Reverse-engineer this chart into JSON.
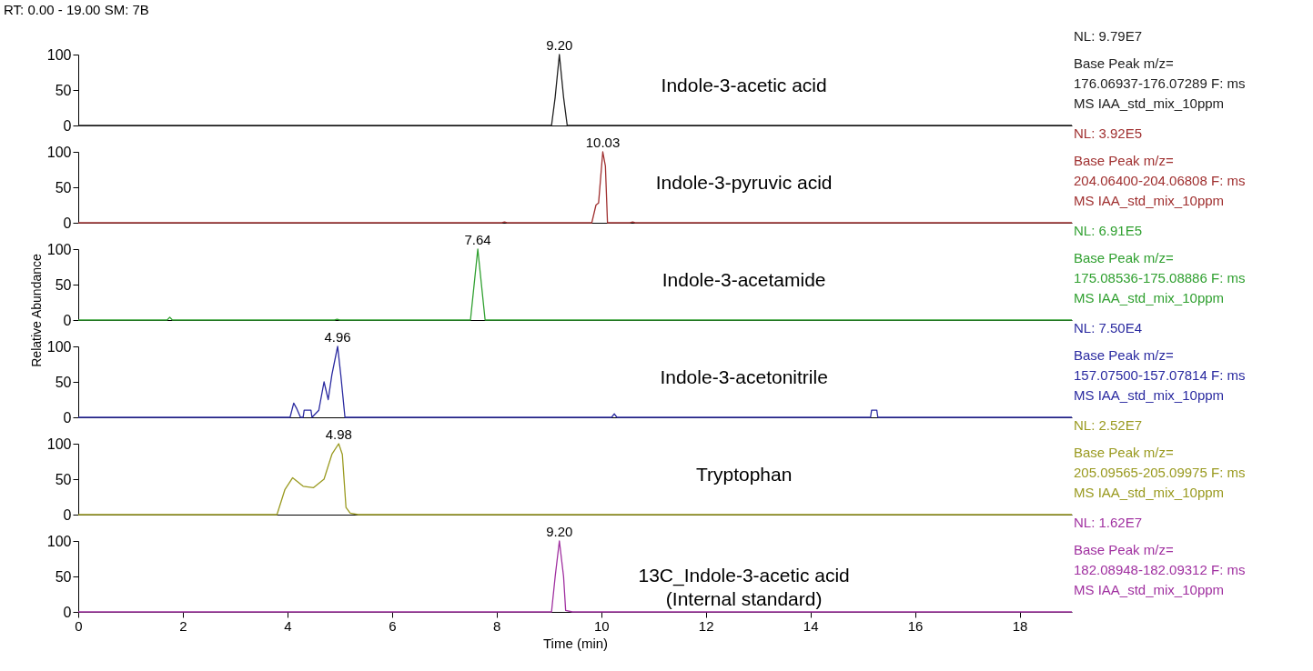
{
  "chart_data": [
    {
      "type": "line",
      "title": "RT: 0.00 - 19.00   SM: 7B",
      "xlim": [
        0,
        19
      ],
      "xticks": [
        0,
        2,
        4,
        6,
        8,
        10,
        12,
        14,
        16,
        18
      ],
      "ylim": [
        0,
        100
      ],
      "yticks": [
        0,
        50,
        100
      ],
      "tick_labels": "y",
      "series": [
        {
          "color": "#202020",
          "x": [
            0,
            9.05,
            9.12,
            9.2,
            9.28,
            9.35,
            19
          ],
          "values": [
            0,
            0,
            40,
            100,
            40,
            0,
            0
          ]
        }
      ],
      "annotations": [
        "Indole-3-acetic acid",
        "NL: 9.79E7",
        "Base Peak m/z=\n176.06937-176.07289 F: ms\nMS IAA_std_mix_10ppm",
        {
          "text": "9.20",
          "x": 9.2,
          "y": 100
        }
      ]
    },
    {
      "type": "line",
      "xlim": [
        0,
        19
      ],
      "xticks": [
        0,
        2,
        4,
        6,
        8,
        10,
        12,
        14,
        16,
        18
      ],
      "ylim": [
        0,
        100
      ],
      "yticks": [
        0,
        50,
        100
      ],
      "tick_labels": "y",
      "series": [
        {
          "color": "#a03030",
          "x": [
            0,
            8.1,
            8.15,
            8.2,
            9.82,
            9.9,
            9.95,
            10.03,
            10.08,
            10.12,
            10.55,
            10.6,
            10.65,
            19
          ],
          "values": [
            0,
            0,
            1,
            0,
            0,
            25,
            28,
            100,
            80,
            0,
            0,
            1,
            0,
            0
          ]
        }
      ],
      "annotations": [
        "Indole-3-pyruvic acid",
        "NL: 3.92E5",
        "Base Peak m/z=\n204.06400-204.06808 F: ms\nMS IAA_std_mix_10ppm",
        {
          "text": "10.03",
          "x": 10.03,
          "y": 100
        }
      ]
    },
    {
      "type": "line",
      "xlim": [
        0,
        19
      ],
      "xticks": [
        0,
        2,
        4,
        6,
        8,
        10,
        12,
        14,
        16,
        18
      ],
      "ylim": [
        0,
        100
      ],
      "yticks": [
        0,
        50,
        100
      ],
      "tick_labels": "y",
      "series": [
        {
          "color": "#30a030",
          "x": [
            0,
            1.7,
            1.75,
            1.8,
            4.9,
            4.95,
            5.0,
            7.5,
            7.64,
            7.78,
            19
          ],
          "values": [
            0,
            0,
            4,
            0,
            0,
            1,
            0,
            0,
            100,
            0,
            0
          ]
        }
      ],
      "annotations": [
        "Indole-3-acetamide",
        "NL: 6.91E5",
        "Base Peak m/z=\n175.08536-175.08886 F: ms\nMS IAA_std_mix_10ppm",
        {
          "text": "7.64",
          "x": 7.64,
          "y": 100
        }
      ]
    },
    {
      "type": "line",
      "ylabel": "Relative Abundance",
      "xlim": [
        0,
        19
      ],
      "xticks": [
        0,
        2,
        4,
        6,
        8,
        10,
        12,
        14,
        16,
        18
      ],
      "ylim": [
        0,
        100
      ],
      "yticks": [
        0,
        50,
        100
      ],
      "tick_labels": "y",
      "series": [
        {
          "color": "#2a2aa0",
          "x": [
            0,
            4.05,
            4.12,
            4.18,
            4.25,
            4.3,
            4.32,
            4.45,
            4.47,
            4.6,
            4.7,
            4.78,
            4.85,
            4.96,
            5.02,
            5.1,
            10.2,
            10.25,
            10.3,
            15.15,
            15.17,
            15.27,
            15.29,
            19
          ],
          "values": [
            0,
            0,
            20,
            12,
            0,
            0,
            10,
            10,
            0,
            10,
            50,
            25,
            60,
            100,
            60,
            0,
            0,
            5,
            0,
            0,
            10,
            10,
            0,
            0
          ]
        }
      ],
      "annotations": [
        "Indole-3-acetonitrile",
        "NL: 7.50E4",
        "Base Peak m/z=\n157.07500-157.07814 F: ms\nMS IAA_std_mix_10ppm",
        {
          "text": "4.96",
          "x": 4.96,
          "y": 100
        }
      ]
    },
    {
      "type": "line",
      "xlim": [
        0,
        19
      ],
      "xticks": [
        0,
        2,
        4,
        6,
        8,
        10,
        12,
        14,
        16,
        18
      ],
      "ylim": [
        0,
        100
      ],
      "yticks": [
        0,
        50,
        100
      ],
      "tick_labels": "y",
      "series": [
        {
          "color": "#9a9a20",
          "x": [
            0,
            3.8,
            3.95,
            4.1,
            4.3,
            4.5,
            4.7,
            4.85,
            4.98,
            5.05,
            5.12,
            5.2,
            5.35,
            19
          ],
          "values": [
            0,
            0,
            35,
            52,
            40,
            38,
            50,
            85,
            100,
            85,
            10,
            2,
            0,
            0
          ]
        }
      ],
      "annotations": [
        "Tryptophan",
        "NL: 2.52E7",
        "Base Peak m/z=\n205.09565-205.09975 F: ms\nMS IAA_std_mix_10ppm",
        {
          "text": "4.98",
          "x": 4.98,
          "y": 100
        }
      ]
    },
    {
      "type": "line",
      "xlabel": "Time (min)",
      "xlim": [
        0,
        19
      ],
      "xticks": [
        0,
        2,
        4,
        6,
        8,
        10,
        12,
        14,
        16,
        18
      ],
      "ylim": [
        0,
        100
      ],
      "yticks": [
        0,
        50,
        100
      ],
      "series": [
        {
          "color": "#a030a0",
          "x": [
            0,
            9.05,
            9.12,
            9.2,
            9.28,
            9.32,
            9.45,
            19
          ],
          "values": [
            0,
            0,
            50,
            100,
            50,
            2,
            0,
            0
          ]
        }
      ],
      "annotations": [
        "13C_Indole-3-acetic acid\n(Internal standard)",
        "NL: 1.62E7",
        "Base Peak m/z=\n182.08948-182.09312 F: ms\nMS IAA_std_mix_10ppm",
        {
          "text": "9.20",
          "x": 9.2,
          "y": 100
        }
      ]
    }
  ]
}
